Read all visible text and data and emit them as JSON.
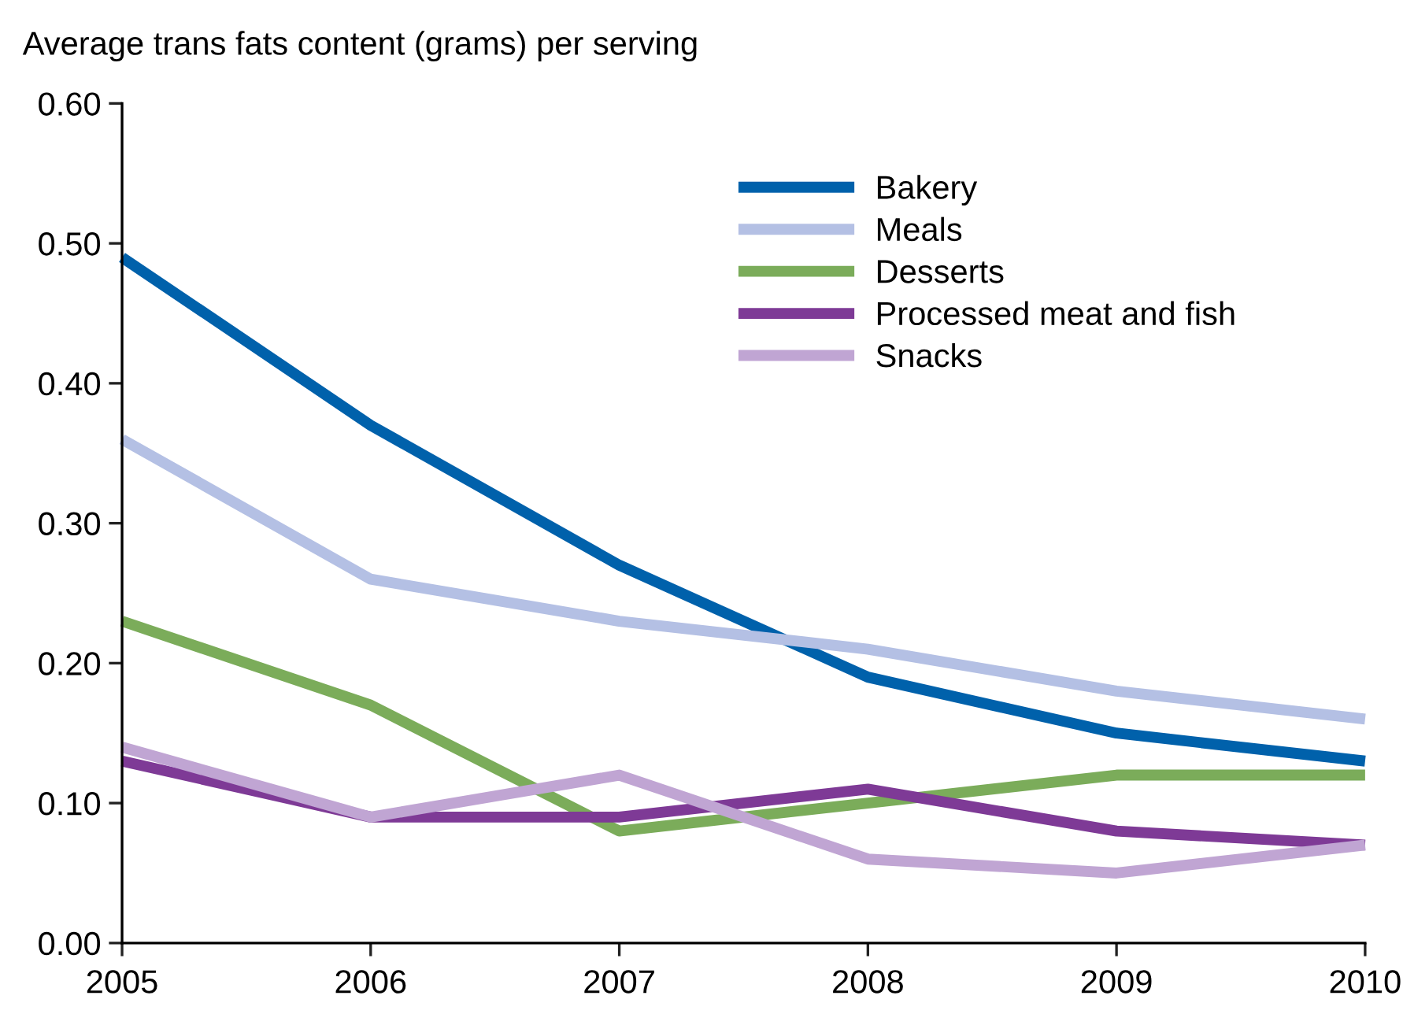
{
  "chart_data": {
    "type": "line",
    "ylabel": "Average trans fats content (grams) per serving",
    "x": [
      2005,
      2006,
      2007,
      2008,
      2009,
      2010
    ],
    "series": [
      {
        "name": "Bakery",
        "color": "#0061ab",
        "values": [
          0.49,
          0.37,
          0.27,
          0.19,
          0.15,
          0.13
        ]
      },
      {
        "name": "Meals",
        "color": "#b4c0e4",
        "values": [
          0.36,
          0.26,
          0.23,
          0.21,
          0.18,
          0.16
        ]
      },
      {
        "name": "Desserts",
        "color": "#7bac5a",
        "values": [
          0.23,
          0.17,
          0.08,
          0.1,
          0.12,
          0.12
        ]
      },
      {
        "name": "Processed meat and fish",
        "color": "#7e3a96",
        "values": [
          0.13,
          0.09,
          0.09,
          0.11,
          0.08,
          0.07
        ]
      },
      {
        "name": "Snacks",
        "color": "#c0a5d3",
        "values": [
          0.14,
          0.09,
          0.12,
          0.06,
          0.05,
          0.07
        ]
      }
    ],
    "xlim": [
      2005,
      2010
    ],
    "xticks": [
      2005,
      2006,
      2007,
      2008,
      2009,
      2010
    ],
    "ylim": [
      0,
      0.6
    ],
    "yticks": [
      {
        "value": 0,
        "label": "0.00"
      },
      {
        "value": 0.1,
        "label": "0.10"
      },
      {
        "value": 0.2,
        "label": "0.20"
      },
      {
        "value": 0.3,
        "label": "0.30"
      },
      {
        "value": 0.4,
        "label": "0.40"
      },
      {
        "value": 0.5,
        "label": "0.50"
      },
      {
        "value": 0.6,
        "label": "0.60"
      }
    ],
    "grid": false,
    "legend": "top right",
    "marker": "none",
    "line_style": "solid"
  }
}
